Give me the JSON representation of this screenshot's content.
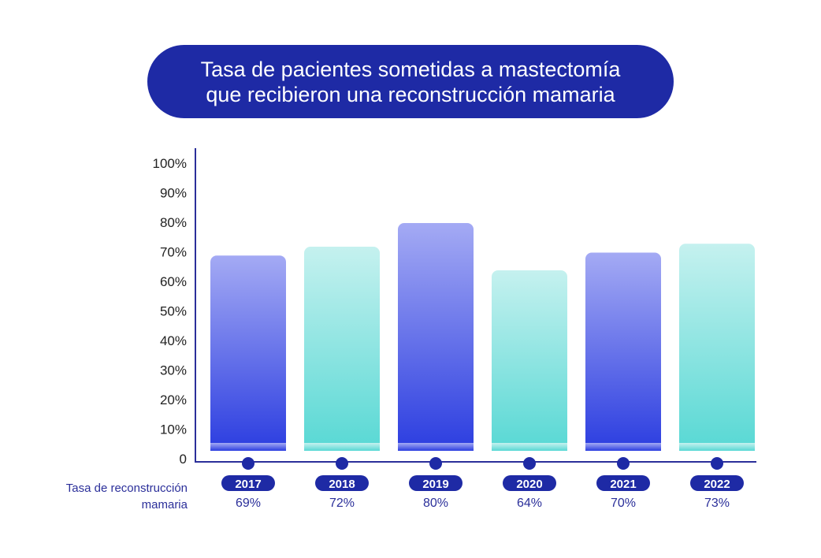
{
  "title": {
    "line1": "Tasa de pacientes sometidas a mastectomía",
    "line2": "que recibieron una reconstrucción mamaria"
  },
  "row_label": {
    "line1": "Tasa de reconstrucción",
    "line2": "mamaria"
  },
  "colors": {
    "title_bg": "#1e2aa5",
    "axis": "#2b2f9a",
    "label_text": "#2b2f9a",
    "pill_bg": "#1e2aa5",
    "blue_top": "#a4aaf4",
    "blue_bottom": "#2b3de0",
    "teal_top": "#c5f1ef",
    "teal_bottom": "#57d8d4"
  },
  "chart_data": {
    "type": "bar",
    "categories": [
      "2017",
      "2018",
      "2019",
      "2020",
      "2021",
      "2022"
    ],
    "values": [
      69,
      72,
      80,
      64,
      70,
      73
    ],
    "value_labels": [
      "69%",
      "72%",
      "80%",
      "64%",
      "70%",
      "73%"
    ],
    "bar_styles": [
      "blue",
      "teal",
      "blue",
      "teal",
      "blue",
      "teal"
    ],
    "y_ticks": [
      "0",
      "10%",
      "20%",
      "30%",
      "40%",
      "50%",
      "60%",
      "70%",
      "80%",
      "90%",
      "100%"
    ],
    "ylim": [
      0,
      100
    ],
    "grid": false,
    "legend": "none"
  }
}
